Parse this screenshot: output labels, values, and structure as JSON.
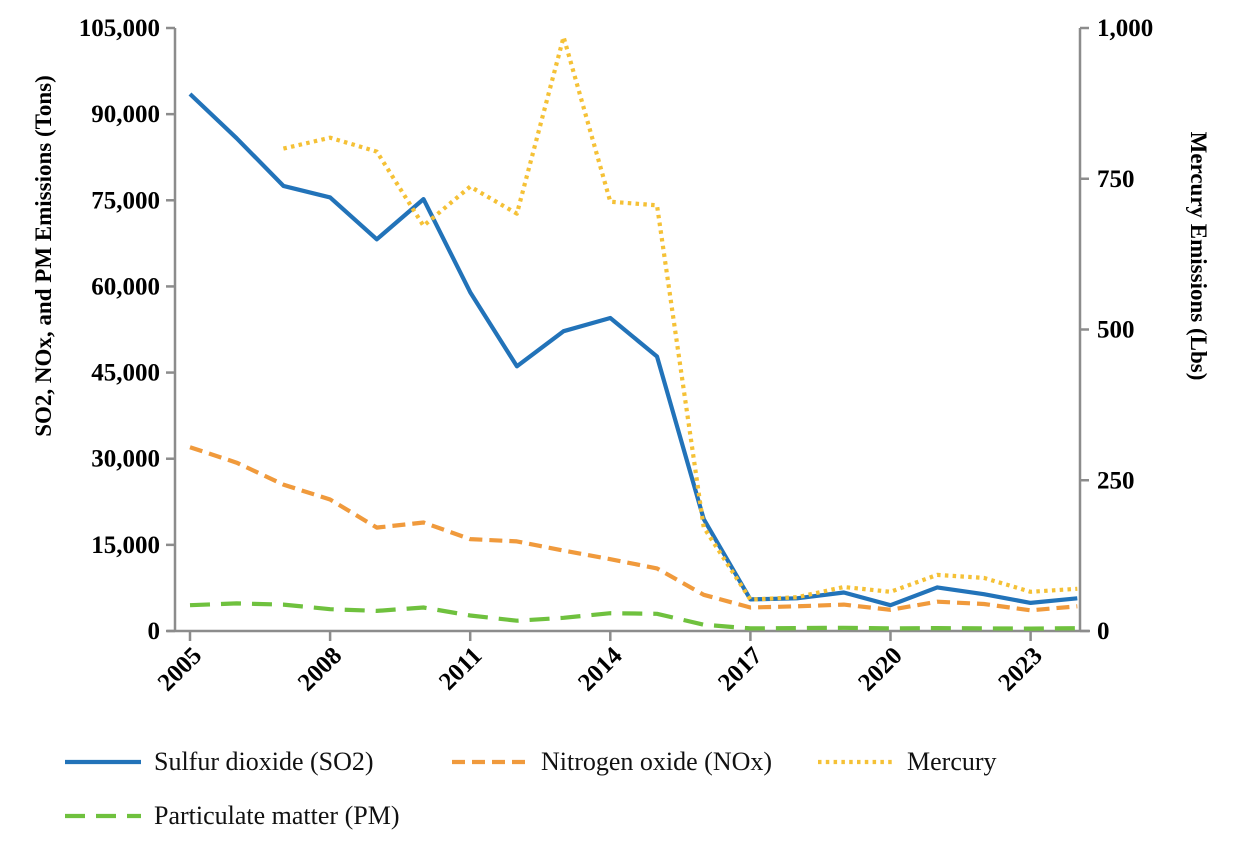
{
  "chart_data": {
    "type": "line",
    "x": [
      2005,
      2006,
      2007,
      2008,
      2009,
      2010,
      2011,
      2012,
      2013,
      2014,
      2015,
      2016,
      2017,
      2018,
      2019,
      2020,
      2021,
      2022,
      2023,
      2024
    ],
    "x_tick_labels": [
      "2005",
      "2008",
      "2011",
      "2014",
      "2017",
      "2020",
      "2023"
    ],
    "left_axis": {
      "title": "SO2, NOx, and PM Emissions (Tons)",
      "min": 0,
      "max": 105000,
      "tick_labels": [
        "0",
        "15,000",
        "30,000",
        "45,000",
        "60,000",
        "75,000",
        "90,000",
        "105,000"
      ]
    },
    "right_axis": {
      "title": "Mercury Emissions (Lbs)",
      "min": 0,
      "max": 1000,
      "tick_labels": [
        "0",
        "250",
        "500",
        "750",
        "1,000"
      ]
    },
    "grid": false,
    "legend_position": "bottom-left",
    "axis_color": "#8c8c8c",
    "series": [
      {
        "name": "Sulfur dioxide (SO2)",
        "axis": "left",
        "color": "#2273B9",
        "line_style": "solid",
        "values": [
          93500,
          85800,
          77500,
          75500,
          68200,
          75200,
          59000,
          46100,
          52200,
          54500,
          47800,
          19500,
          5500,
          5700,
          6700,
          4500,
          7600,
          6400,
          4900,
          5700
        ]
      },
      {
        "name": "Nitrogen oxide (NOx)",
        "axis": "left",
        "color": "#F09A3C",
        "line_style": "dashed",
        "values": [
          32000,
          29300,
          25500,
          22900,
          18000,
          18900,
          16000,
          15600,
          14000,
          12500,
          10900,
          6300,
          4100,
          4300,
          4600,
          3700,
          5100,
          4700,
          3600,
          4300
        ]
      },
      {
        "name": "Mercury",
        "axis": "right",
        "color": "#F5C136",
        "line_style": "dotted",
        "values": [
          null,
          null,
          800,
          818,
          795,
          672,
          737,
          692,
          985,
          712,
          706,
          172,
          52,
          56,
          73,
          65,
          93,
          88,
          65,
          70
        ]
      },
      {
        "name": "Particulate matter (PM)",
        "axis": "left",
        "color": "#6FC13E",
        "line_style": "longdash",
        "values": [
          4500,
          4800,
          4600,
          3800,
          3500,
          4100,
          2700,
          1800,
          2300,
          3100,
          3000,
          1100,
          450,
          500,
          550,
          450,
          500,
          450,
          420,
          480
        ]
      }
    ]
  }
}
